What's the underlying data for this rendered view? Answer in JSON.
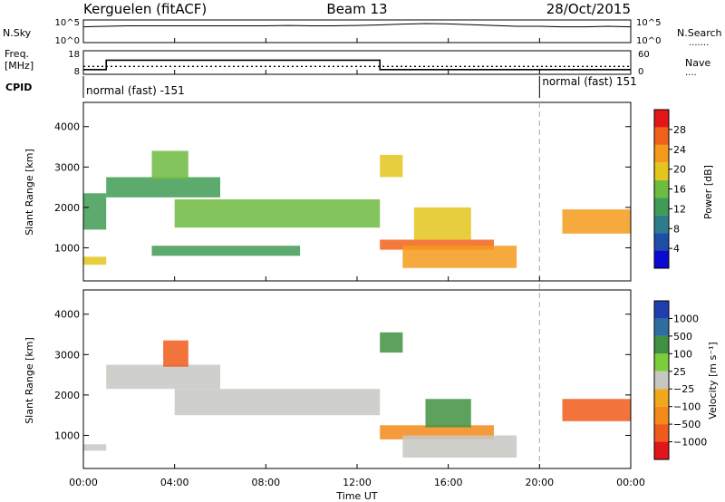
{
  "header": {
    "station": "Kerguelen (fitACF)",
    "beam": "Beam 13",
    "date": "28/Oct/2015"
  },
  "noise_panel": {
    "left_label": "N.Sky",
    "right_label": "N.Search",
    "left_ticks": [
      "10^5",
      "10^0"
    ],
    "right_ticks": [
      "10^5",
      "10^0"
    ]
  },
  "freq_panel": {
    "left_label_top": "Freq.",
    "left_label_bottom": "[MHz]",
    "right_label": "Nave",
    "left_ticks": [
      "18",
      "8"
    ],
    "right_ticks": [
      "60",
      "0"
    ]
  },
  "cpid": {
    "label": "CPID",
    "segments": [
      {
        "text": "normal (fast) -151",
        "start_hour": 0
      },
      {
        "text": "normal (fast) 151",
        "start_hour": 20
      }
    ]
  },
  "time_axis": {
    "label": "Time UT",
    "ticks": [
      "00:00",
      "04:00",
      "08:00",
      "12:00",
      "16:00",
      "20:00",
      "00:00"
    ],
    "range_hours": [
      0,
      24
    ]
  },
  "colors": {
    "power": [
      "#0a0ad2",
      "#1f4ea8",
      "#2e7c8a",
      "#3f9b55",
      "#6dbb3f",
      "#e3c51c",
      "#f59a1b",
      "#f2611a",
      "#e3161a"
    ],
    "velocity": [
      "#1f3fb0",
      "#2f6fa0",
      "#3f9040",
      "#7dcc3a",
      "#c7c7c2",
      "#f0a81c",
      "#f48a1a",
      "#f05a1a",
      "#e0161a"
    ]
  },
  "chart_data": [
    {
      "type": "line",
      "title": "",
      "ylabel": "N.Sky",
      "y_scale": "log",
      "ylim": [
        1,
        100000
      ],
      "x": [
        0,
        0.5,
        1,
        2,
        3,
        4,
        5,
        6,
        7,
        8,
        9,
        10,
        11,
        12,
        13,
        14,
        15,
        16,
        17,
        18,
        19,
        20,
        21,
        22,
        23,
        24
      ],
      "series": [
        {
          "values": [
            3000,
            3500,
            4000,
            5000,
            5000,
            5000,
            5000,
            5000,
            5000,
            5000,
            6000,
            5000,
            5000,
            6000,
            8000,
            12000,
            16000,
            13000,
            9000,
            6000,
            4000,
            4000,
            3000,
            3000,
            4000,
            3000
          ]
        }
      ]
    },
    {
      "type": "line",
      "title": "",
      "ylabel": "Freq. [MHz]",
      "ylim": [
        8,
        18
      ],
      "y2label": "Nave",
      "y2lim": [
        0,
        60
      ],
      "x": [
        0,
        1,
        1,
        13,
        13,
        24
      ],
      "series": [
        {
          "name": "Freq.",
          "values": [
            10,
            10,
            14,
            14,
            10,
            10
          ]
        }
      ],
      "nave_level": 20
    },
    {
      "type": "heatmap",
      "title": "",
      "xlabel": "Time UT",
      "ylabel": "Slant Range [km]",
      "xlim": [
        0,
        24
      ],
      "ylim": [
        180,
        4600
      ],
      "yticks": [
        1000,
        2000,
        3000,
        4000
      ],
      "colorbar": {
        "label": "Power [dB]",
        "ticks": [
          4,
          8,
          12,
          16,
          20,
          24,
          28
        ],
        "range": [
          0,
          32
        ]
      },
      "echo_regions": [
        {
          "t": [
            0,
            1
          ],
          "r": [
            1450,
            2350
          ],
          "value": 12
        },
        {
          "t": [
            1,
            6
          ],
          "r": [
            2250,
            2750
          ],
          "value": 12
        },
        {
          "t": [
            3,
            4.6
          ],
          "r": [
            2700,
            3400
          ],
          "value": 16
        },
        {
          "t": [
            4,
            13
          ],
          "r": [
            1500,
            2200
          ],
          "value": 16
        },
        {
          "t": [
            3,
            9.5
          ],
          "r": [
            800,
            1050
          ],
          "value": 12
        },
        {
          "t": [
            13,
            14
          ],
          "r": [
            2750,
            3300
          ],
          "value": 20
        },
        {
          "t": [
            13,
            18
          ],
          "r": [
            950,
            1200
          ],
          "value": 28
        },
        {
          "t": [
            14,
            19
          ],
          "r": [
            500,
            1050
          ],
          "value": 24
        },
        {
          "t": [
            14.5,
            17
          ],
          "r": [
            1200,
            2000
          ],
          "value": 20
        },
        {
          "t": [
            21,
            24
          ],
          "r": [
            1350,
            1950
          ],
          "value": 24
        },
        {
          "t": [
            0,
            1
          ],
          "r": [
            580,
            780
          ],
          "value": 20
        }
      ]
    },
    {
      "type": "heatmap",
      "title": "",
      "xlabel": "Time UT",
      "ylabel": "Slant Range [km]",
      "xlim": [
        0,
        24
      ],
      "ylim": [
        180,
        4600
      ],
      "yticks": [
        1000,
        2000,
        3000,
        4000
      ],
      "colorbar": {
        "label": "Velocity [m s⁻¹]",
        "ticks": [
          1000,
          500,
          100,
          25,
          -25,
          -100,
          -500,
          -1000
        ],
        "range": [
          -1000,
          1000
        ]
      },
      "echo_regions": [
        {
          "t": [
            1,
            6
          ],
          "r": [
            2150,
            2750
          ],
          "value": 0
        },
        {
          "t": [
            3.5,
            4.6
          ],
          "r": [
            2700,
            3350
          ],
          "value": -700
        },
        {
          "t": [
            4,
            13
          ],
          "r": [
            1500,
            2150
          ],
          "value": 0
        },
        {
          "t": [
            13,
            14
          ],
          "r": [
            3050,
            3550
          ],
          "value": 100
        },
        {
          "t": [
            13,
            18
          ],
          "r": [
            900,
            1250
          ],
          "value": -200
        },
        {
          "t": [
            14,
            19
          ],
          "r": [
            450,
            1000
          ],
          "value": 0
        },
        {
          "t": [
            15,
            17
          ],
          "r": [
            1200,
            1900
          ],
          "value": 100
        },
        {
          "t": [
            21,
            24
          ],
          "r": [
            1350,
            1900
          ],
          "value": -600
        },
        {
          "t": [
            0,
            1
          ],
          "r": [
            620,
            780
          ],
          "value": 0
        }
      ]
    }
  ]
}
